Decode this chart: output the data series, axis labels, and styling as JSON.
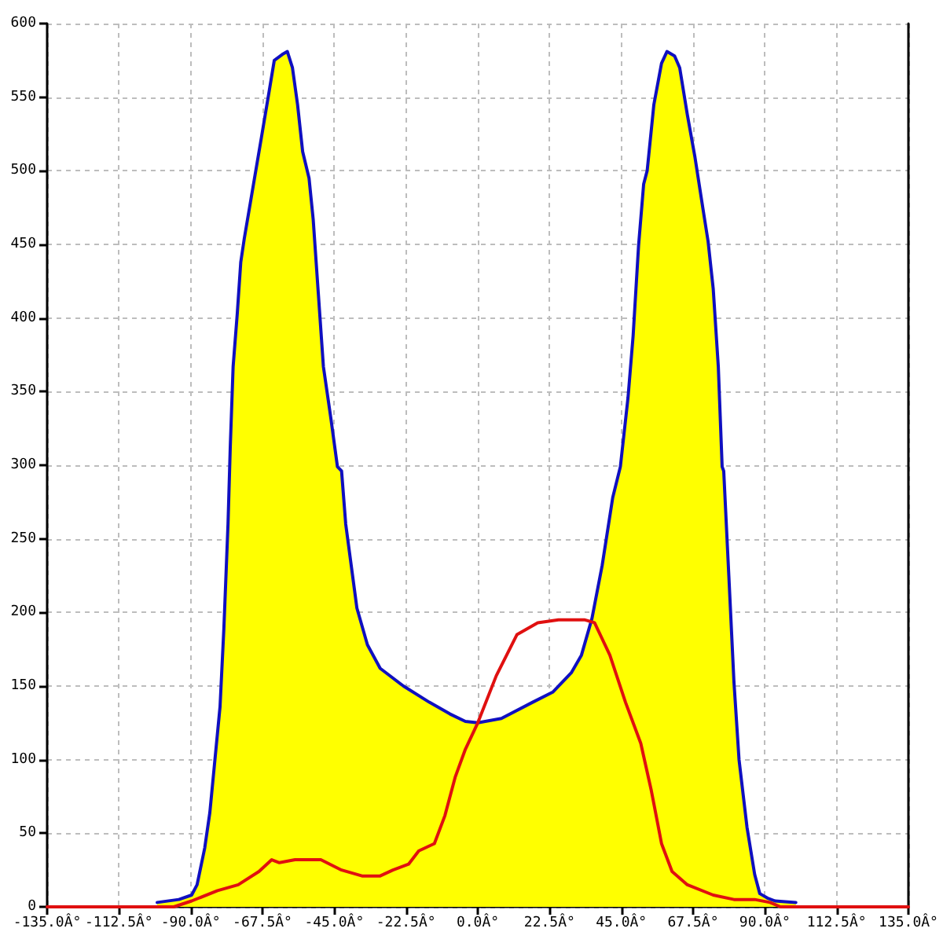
{
  "chart_data": {
    "type": "line",
    "xlim": [
      -135,
      135
    ],
    "xticks": [
      {
        "value": -135,
        "label": "-135.0Â°"
      },
      {
        "value": -112.5,
        "label": "-112.5Â°"
      },
      {
        "value": -90,
        "label": "-90.0Â°"
      },
      {
        "value": -67.5,
        "label": "-67.5Â°"
      },
      {
        "value": -45,
        "label": "-45.0Â°"
      },
      {
        "value": -22.5,
        "label": "-22.5Â°"
      },
      {
        "value": 0,
        "label": "0.0Â°"
      },
      {
        "value": 22.5,
        "label": "22.5Â°"
      },
      {
        "value": 45,
        "label": "45.0Â°"
      },
      {
        "value": 67.5,
        "label": "67.5Â°"
      },
      {
        "value": 90,
        "label": "90.0Â°"
      },
      {
        "value": 112.5,
        "label": "112.5Â°"
      },
      {
        "value": 135,
        "label": "135.0Â°"
      }
    ],
    "ylim": [
      0,
      600
    ],
    "yticks": [
      0,
      50,
      100,
      150,
      200,
      250,
      300,
      350,
      400,
      450,
      500,
      550,
      600
    ],
    "grid": true,
    "marker": "none",
    "line_style": "solid",
    "series": [
      {
        "type": "area",
        "color": "#ffff00",
        "x": [
          -100.5,
          -93.7,
          -89.7,
          -88,
          -85.6,
          -84,
          -82.4,
          -80.8,
          -79.6,
          -78.3,
          -77.6,
          -76.7,
          -75.4,
          -74.3,
          -73.2,
          -70.3,
          -67.8,
          -65.4,
          -63.8,
          -61.3,
          -59.7,
          -58.1,
          -56.5,
          -54.9,
          -52.9,
          -51.6,
          -50,
          -48.4,
          -46,
          -44,
          -42.7,
          -41.4,
          -37.9,
          -34.6,
          -30.6,
          -23.3,
          -15.2,
          -8.7,
          -3.9,
          0,
          7.4,
          17.2,
          23.6,
          29.3,
          32.5,
          35.8,
          39,
          42.3,
          44.7,
          47.1,
          48.7,
          50.4,
          52,
          53.1,
          55.2,
          57.6,
          59.3,
          61.7,
          63.3,
          65.7,
          68.1,
          70.6,
          72.2,
          73.8,
          75.4,
          76.6,
          77.1,
          78.7,
          80.3,
          81.9,
          84.4,
          86.8,
          88.4,
          90.8,
          93.2,
          99.7
        ],
        "values": [
          3,
          5,
          8,
          15,
          40,
          64,
          100,
          136,
          189,
          260,
          312,
          367,
          403,
          438,
          454,
          491,
          523,
          554,
          575,
          579,
          581,
          570,
          545,
          513,
          495,
          467,
          417,
          367,
          331,
          299,
          296,
          260,
          203,
          178,
          162,
          150,
          139,
          131,
          126,
          125,
          128,
          139,
          146,
          159,
          171,
          196,
          232,
          278,
          299,
          346,
          388,
          449,
          491,
          500,
          545,
          573,
          581,
          578,
          570,
          538,
          509,
          474,
          452,
          420,
          367,
          299,
          296,
          225,
          153,
          100,
          54,
          22,
          9,
          6,
          4,
          3
        ]
      },
      {
        "color": "#1010c0",
        "x": [
          -100.5,
          -93.7,
          -89.7,
          -88,
          -85.6,
          -84,
          -82.4,
          -80.8,
          -79.6,
          -78.3,
          -77.6,
          -76.7,
          -75.4,
          -74.3,
          -73.2,
          -70.3,
          -67.8,
          -65.4,
          -63.8,
          -61.3,
          -59.7,
          -58.1,
          -56.5,
          -54.9,
          -52.9,
          -51.6,
          -50,
          -48.4,
          -46,
          -44,
          -42.7,
          -41.4,
          -37.9,
          -34.6,
          -30.6,
          -23.3,
          -15.2,
          -8.7,
          -3.9,
          0,
          7.4,
          17.2,
          23.6,
          29.3,
          32.5,
          35.8,
          39,
          42.3,
          44.7,
          47.1,
          48.7,
          50.4,
          52,
          53.1,
          55.2,
          57.6,
          59.3,
          61.7,
          63.3,
          65.7,
          68.1,
          70.6,
          72.2,
          73.8,
          75.4,
          76.6,
          77.1,
          78.7,
          80.3,
          81.9,
          84.4,
          86.8,
          88.4,
          90.8,
          93.2,
          99.7
        ],
        "values": [
          3,
          5,
          8,
          15,
          40,
          64,
          100,
          136,
          189,
          260,
          312,
          367,
          403,
          438,
          454,
          491,
          523,
          554,
          575,
          579,
          581,
          570,
          545,
          513,
          495,
          467,
          417,
          367,
          331,
          299,
          296,
          260,
          203,
          178,
          162,
          150,
          139,
          131,
          126,
          125,
          128,
          139,
          146,
          159,
          171,
          196,
          232,
          278,
          299,
          346,
          388,
          449,
          491,
          500,
          545,
          573,
          581,
          578,
          570,
          538,
          509,
          474,
          452,
          420,
          367,
          299,
          296,
          225,
          153,
          100,
          54,
          22,
          9,
          6,
          4,
          3
        ]
      },
      {
        "color": "#e01010",
        "x": [
          -135,
          -95.3,
          -89.7,
          -81.6,
          -75.1,
          -68.6,
          -64.6,
          -62.2,
          -57.3,
          -49.2,
          -42.7,
          -36.3,
          -30.6,
          -26.6,
          -21.7,
          -18.5,
          -13.6,
          -10.3,
          -7.1,
          -3.9,
          0,
          5.8,
          12.3,
          18.8,
          25.3,
          33.4,
          36.6,
          41.4,
          46.3,
          51.1,
          54.4,
          57.6,
          60.9,
          65.7,
          73.8,
          80.3,
          86.8,
          91.6,
          94.9,
          135
        ],
        "values": [
          0,
          0,
          4,
          11,
          15,
          24,
          32,
          30,
          32,
          32,
          25,
          21,
          21,
          25,
          29,
          38,
          43,
          62,
          88,
          107,
          125,
          157,
          185,
          193,
          195,
          195,
          193,
          171,
          139,
          111,
          79,
          43,
          24,
          15,
          8,
          5,
          5,
          3,
          0,
          0
        ]
      }
    ]
  }
}
